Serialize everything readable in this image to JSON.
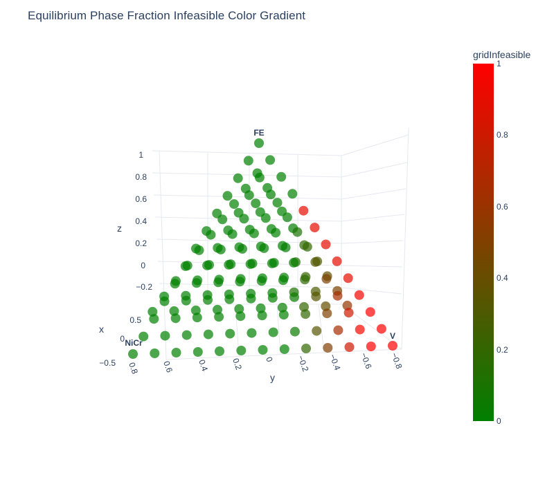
{
  "chart_data": {
    "type": "scatter",
    "title": "Equilibrium Phase Fraction Infeasible Color Gradient",
    "axes": {
      "x": {
        "label": "x",
        "ticks": [
          "0.5",
          "0",
          "−0.5"
        ]
      },
      "y": {
        "label": "y",
        "ticks": [
          "0.8",
          "0.6",
          "0.4",
          "0.2",
          "0",
          "−0.2",
          "−0.4",
          "−0.6",
          "−0.8"
        ]
      },
      "z": {
        "label": "z",
        "ticks": [
          "1",
          "0.8",
          "0.6",
          "0.4",
          "0.2",
          "0",
          "−0.2"
        ]
      }
    },
    "ternary_labels": {
      "top": "FE",
      "left": "NiCr",
      "right": "V"
    },
    "grid_divisions": 12,
    "infeasible_rule": "points near the FE–V edge with high V fraction are infeasible (value 1); values blend between 0 and 1",
    "colorbar": {
      "title": "gridInfeasible",
      "range": [
        0,
        1
      ],
      "ticks": [
        "0",
        "0.2",
        "0.4",
        "0.6",
        "0.8",
        "1"
      ],
      "color_low": "#008000",
      "color_high": "#ff0000"
    },
    "marker_opacity": 0.7,
    "grid": true
  }
}
